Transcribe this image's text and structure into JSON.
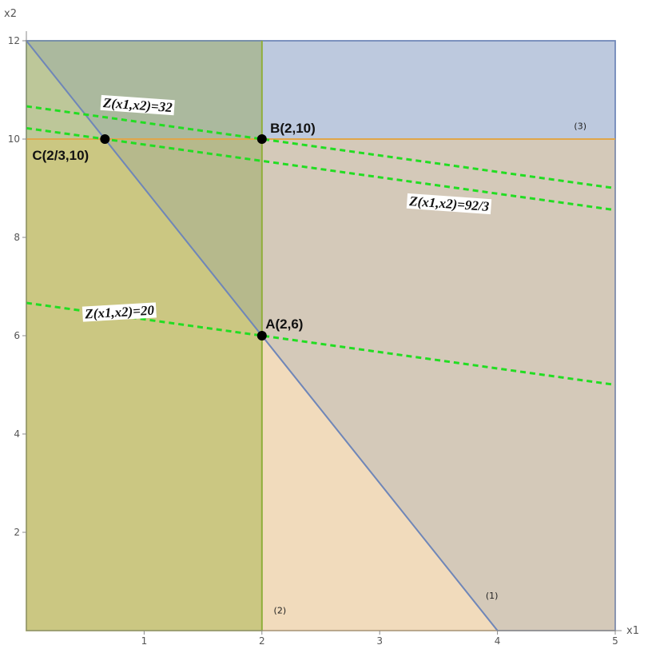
{
  "chart_data": {
    "type": "line",
    "title": "",
    "xlabel": "x1",
    "ylabel": "x2",
    "xlim": [
      0,
      5
    ],
    "ylim": [
      0,
      12
    ],
    "x_ticks": [
      1,
      2,
      3,
      4,
      5
    ],
    "y_ticks": [
      2,
      4,
      6,
      8,
      10,
      12
    ],
    "grid": false,
    "regions": [
      {
        "name": "x2 >= 10",
        "polygon": [
          [
            0,
            10
          ],
          [
            5,
            10
          ],
          [
            5,
            12
          ],
          [
            0,
            12
          ]
        ],
        "fill": "#8da0cb",
        "stroke": "#6f86b8",
        "opacity": 0.38
      },
      {
        "name": "x2 <= 10",
        "polygon": [
          [
            0,
            0
          ],
          [
            5,
            0
          ],
          [
            5,
            10
          ],
          [
            0,
            10
          ]
        ],
        "fill": "#e3b87a",
        "stroke": "#e0a64a",
        "opacity": 0.5
      },
      {
        "name": "x1 <= 2",
        "polygon": [
          [
            0,
            0
          ],
          [
            2,
            0
          ],
          [
            2,
            12
          ],
          [
            0,
            12
          ]
        ],
        "fill": "#a6b348",
        "stroke": "#8fae3a",
        "opacity": 0.5
      },
      {
        "name": "3x1 + x2 >= 12",
        "polygon": [
          [
            0,
            12
          ],
          [
            4,
            0
          ],
          [
            5,
            0
          ],
          [
            5,
            12
          ]
        ],
        "fill": "#6d87b3",
        "stroke": "#6f86b8",
        "opacity": 0.22
      }
    ],
    "constraints": [
      {
        "label": "(1)",
        "line": [
          [
            0,
            12
          ],
          [
            4,
            0
          ]
        ],
        "color": "#6f86b8",
        "label_at": [
          3.9,
          0.65
        ]
      },
      {
        "label": "(2)",
        "line": [
          [
            2,
            0
          ],
          [
            2,
            12
          ]
        ],
        "color": "#8fae3a",
        "label_at": [
          2.1,
          0.35
        ]
      },
      {
        "label": "(3)",
        "line": [
          [
            0,
            10
          ],
          [
            5,
            10
          ]
        ],
        "color": "#e0a64a",
        "label_at": [
          4.65,
          10.2
        ]
      }
    ],
    "objective_lines": [
      {
        "label": "Z(x1,x2)=20",
        "points": [
          [
            0,
            6.667
          ],
          [
            5,
            5
          ]
        ],
        "color": "#22dd22",
        "label_at": [
          0.5,
          6.35
        ],
        "label_angle": -3.3
      },
      {
        "label": "Z(x1,x2)=92/3",
        "points": [
          [
            0,
            10.222
          ],
          [
            5,
            8.556
          ]
        ],
        "color": "#22dd22",
        "label_at": [
          3.25,
          8.65
        ],
        "label_angle": 4
      },
      {
        "label": "Z(x1,x2)=32",
        "points": [
          [
            0,
            10.667
          ],
          [
            5,
            9
          ]
        ],
        "color": "#22dd22",
        "label_at": [
          0.65,
          10.65
        ],
        "label_angle": 4
      }
    ],
    "points": [
      {
        "label": "A(2,6)",
        "x": 2,
        "y": 6,
        "label_at": [
          2.03,
          6.15
        ]
      },
      {
        "label": "B(2,10)",
        "x": 2,
        "y": 10,
        "label_at": [
          2.07,
          10.13
        ]
      },
      {
        "label": "C(2/3,10)",
        "x": 0.667,
        "y": 10,
        "label_at": [
          0.05,
          9.58
        ]
      }
    ]
  }
}
